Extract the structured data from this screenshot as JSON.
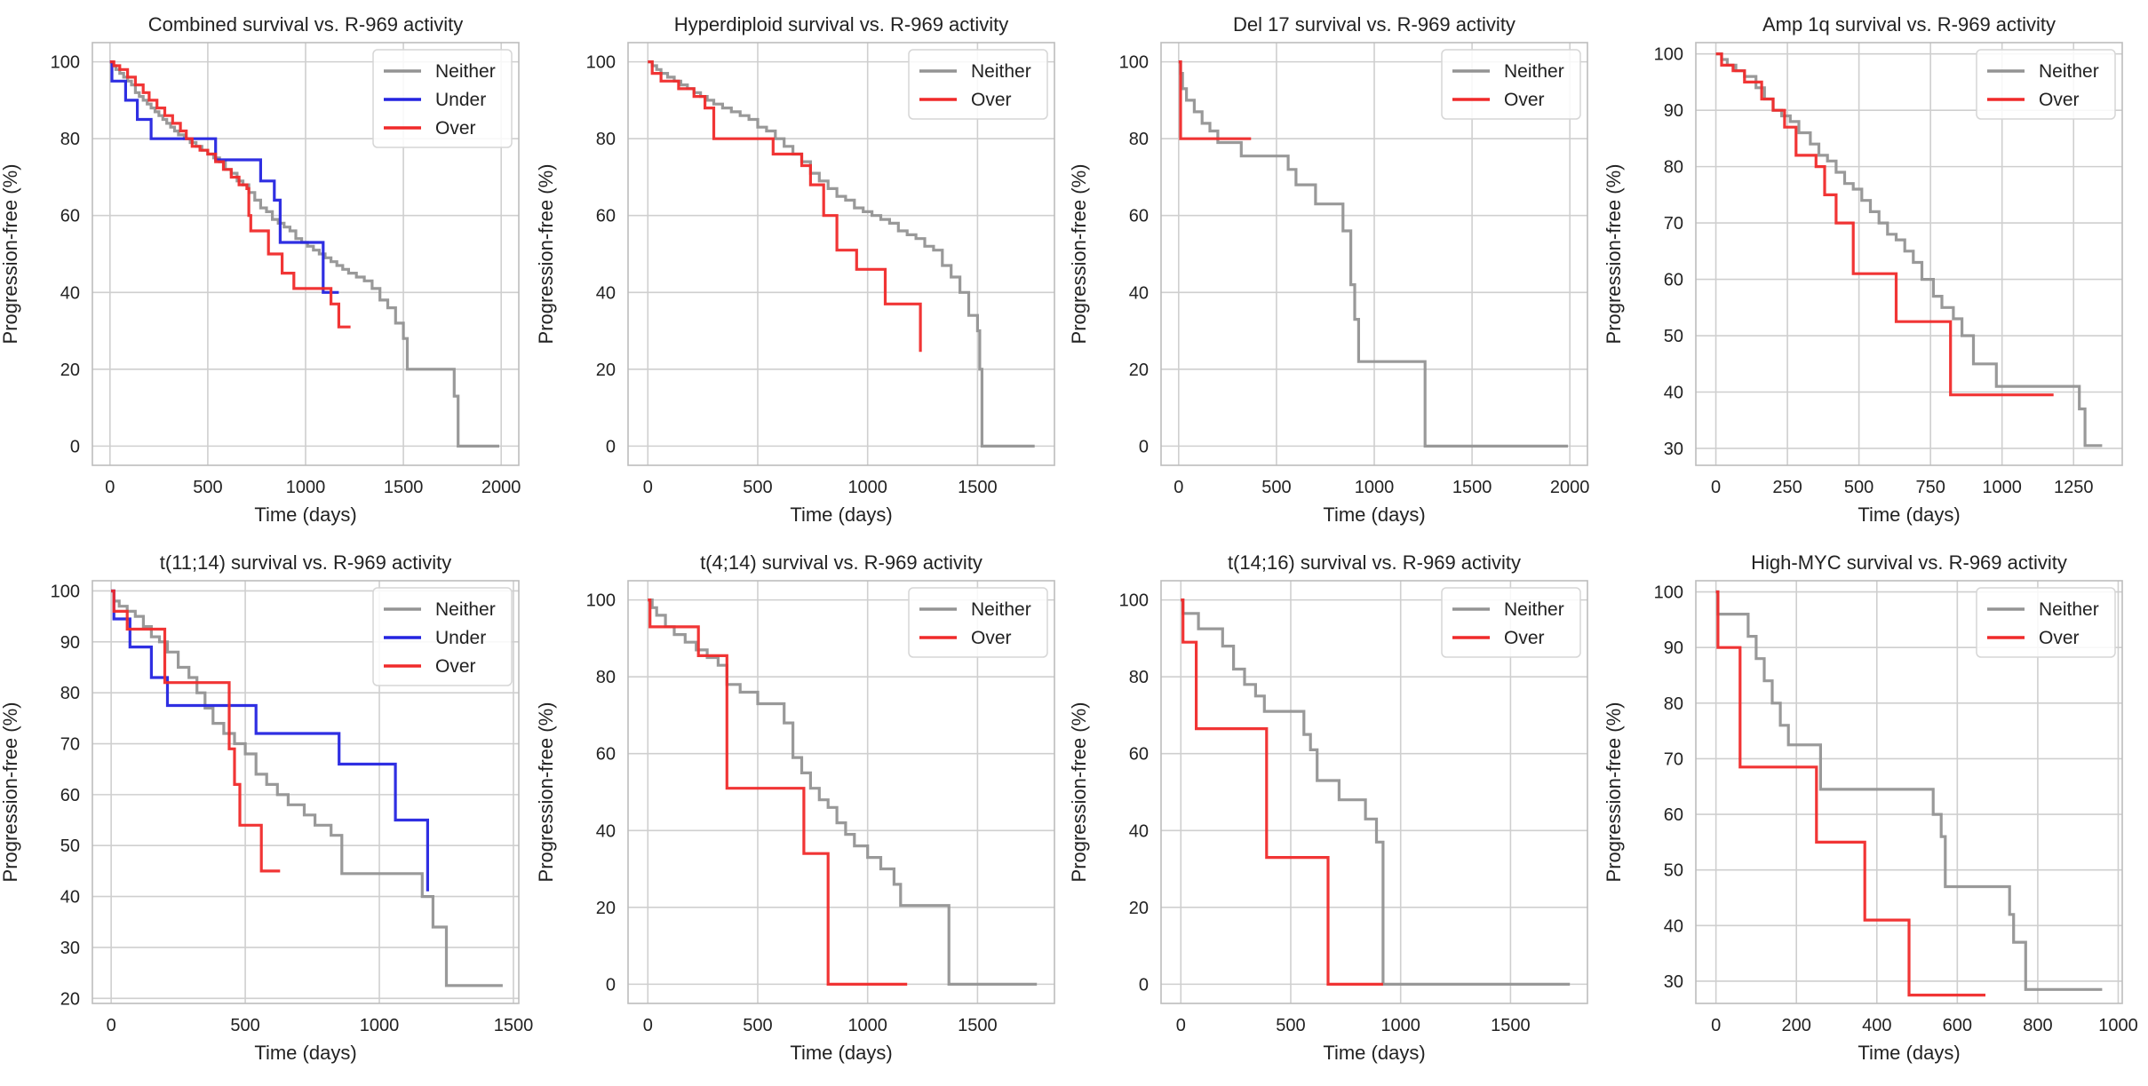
{
  "figure": {
    "background": "#ffffff",
    "grid_color": "#cfcfcf",
    "spine_color": "#bdbdbd"
  },
  "series_styles": {
    "Neither": {
      "color": "#939393"
    },
    "Under": {
      "color": "#2424e0"
    },
    "Over": {
      "color": "#f02a2a"
    }
  },
  "chart_data": [
    {
      "type": "line",
      "title": "Combined survival vs. R-969 activity",
      "xlabel": "Time (days)",
      "ylabel": "Progression-free (%)",
      "xlim": [
        -90,
        2090
      ],
      "ylim": [
        -5,
        105
      ],
      "xticks": [
        0,
        500,
        1000,
        1500,
        2000
      ],
      "yticks": [
        0,
        20,
        40,
        60,
        80,
        100
      ],
      "grid": true,
      "legend": "top-right",
      "series": [
        {
          "name": "Neither",
          "x": [
            0,
            15,
            30,
            50,
            70,
            90,
            110,
            130,
            150,
            170,
            190,
            210,
            230,
            250,
            270,
            290,
            310,
            330,
            350,
            380,
            410,
            440,
            470,
            500,
            530,
            560,
            590,
            620,
            650,
            680,
            710,
            740,
            770,
            800,
            830,
            860,
            890,
            920,
            950,
            980,
            1010,
            1040,
            1070,
            1100,
            1130,
            1160,
            1190,
            1220,
            1260,
            1300,
            1340,
            1380,
            1420,
            1460,
            1500,
            1520,
            1760,
            1780,
            1990
          ],
          "y": [
            100,
            99,
            98,
            97,
            96,
            95,
            94,
            92,
            91,
            90,
            89,
            88,
            87,
            86,
            85,
            84,
            83,
            82,
            81,
            80,
            79,
            78,
            77,
            76,
            75,
            74,
            72,
            71,
            69,
            68,
            66,
            64,
            62,
            61,
            59,
            58,
            57,
            56,
            54,
            53,
            52,
            51,
            50,
            49,
            48,
            47,
            46,
            45,
            44,
            43,
            41,
            38,
            36,
            32,
            28,
            20,
            13,
            0,
            0
          ]
        },
        {
          "name": "Under",
          "x": [
            0,
            10,
            80,
            140,
            210,
            510,
            540,
            720,
            770,
            840,
            870,
            1060,
            1090,
            1170
          ],
          "y": [
            100,
            95,
            90,
            85,
            80,
            80,
            74.5,
            74.5,
            69,
            64,
            53,
            53,
            40,
            40
          ]
        },
        {
          "name": "Over",
          "x": [
            0,
            20,
            50,
            90,
            130,
            170,
            200,
            240,
            280,
            320,
            360,
            390,
            420,
            460,
            500,
            540,
            580,
            620,
            660,
            700,
            710,
            720,
            780,
            810,
            840,
            880,
            940,
            1000,
            1040,
            1080,
            1130,
            1170,
            1230
          ],
          "y": [
            100,
            99,
            98,
            96,
            94,
            92,
            90,
            88,
            86,
            84,
            82,
            80,
            78,
            77,
            76,
            74,
            72,
            70,
            68,
            67,
            60,
            56,
            56,
            50,
            50,
            45,
            41,
            41,
            41,
            41,
            37,
            31,
            31
          ]
        }
      ]
    },
    {
      "type": "line",
      "title": "Hyperdiploid survival vs. R-969 activity",
      "xlabel": "Time (days)",
      "ylabel": "Progression-free (%)",
      "xlim": [
        -90,
        1850
      ],
      "ylim": [
        -5,
        105
      ],
      "xticks": [
        0,
        500,
        1000,
        1500
      ],
      "yticks": [
        0,
        20,
        40,
        60,
        80,
        100
      ],
      "grid": true,
      "legend": "top-right",
      "series": [
        {
          "name": "Neither",
          "x": [
            0,
            20,
            40,
            60,
            90,
            120,
            150,
            180,
            210,
            240,
            270,
            300,
            340,
            380,
            420,
            460,
            500,
            540,
            580,
            620,
            660,
            700,
            740,
            780,
            820,
            860,
            900,
            940,
            980,
            1020,
            1060,
            1100,
            1140,
            1180,
            1220,
            1260,
            1300,
            1340,
            1380,
            1420,
            1460,
            1500,
            1510,
            1520,
            1760
          ],
          "y": [
            100,
            99,
            98,
            97,
            96,
            95,
            94,
            93,
            92,
            91,
            90,
            89,
            88,
            87,
            86,
            85,
            83,
            82,
            80,
            78,
            76,
            74,
            71,
            69,
            67,
            65,
            64,
            62,
            61,
            60,
            59,
            58,
            56,
            55,
            54,
            52,
            51,
            47,
            44,
            40,
            34,
            30,
            20,
            0,
            0
          ]
        },
        {
          "name": "Over",
          "x": [
            0,
            20,
            60,
            140,
            210,
            260,
            300,
            540,
            570,
            660,
            700,
            730,
            740,
            800,
            860,
            900,
            950,
            1080,
            1240
          ],
          "y": [
            100,
            97,
            95,
            93,
            91,
            88,
            80,
            80,
            76,
            76,
            73,
            73,
            68,
            60,
            51,
            51,
            46,
            37,
            24.5
          ]
        }
      ]
    },
    {
      "type": "line",
      "title": "Del 17 survival vs. R-969 activity",
      "xlabel": "Time (days)",
      "ylabel": "Progression-free (%)",
      "xlim": [
        -90,
        2090
      ],
      "ylim": [
        -5,
        105
      ],
      "xticks": [
        0,
        500,
        1000,
        1500,
        2000
      ],
      "yticks": [
        0,
        20,
        40,
        60,
        80,
        100
      ],
      "grid": true,
      "legend": "top-right",
      "series": [
        {
          "name": "Neither",
          "x": [
            0,
            10,
            20,
            40,
            80,
            120,
            160,
            200,
            320,
            520,
            560,
            600,
            700,
            840,
            880,
            900,
            920,
            1250,
            1260,
            1990
          ],
          "y": [
            100,
            97,
            93,
            90,
            87,
            84,
            82,
            79,
            75.5,
            75.5,
            72,
            68,
            63,
            56,
            42,
            33,
            22,
            22,
            0,
            0
          ]
        },
        {
          "name": "Over",
          "x": [
            0,
            10,
            370
          ],
          "y": [
            100,
            80,
            80
          ]
        }
      ]
    },
    {
      "type": "line",
      "title": "Amp 1q survival vs. R-969 activity",
      "xlabel": "Time (days)",
      "ylabel": "Progression-free (%)",
      "xlim": [
        -70,
        1420
      ],
      "ylim": [
        27,
        102
      ],
      "xticks": [
        0,
        250,
        500,
        750,
        1000,
        1250
      ],
      "yticks": [
        30,
        40,
        50,
        60,
        70,
        80,
        90,
        100
      ],
      "grid": true,
      "legend": "top-right",
      "series": [
        {
          "name": "Neither",
          "x": [
            0,
            20,
            40,
            70,
            100,
            140,
            170,
            200,
            230,
            260,
            290,
            330,
            360,
            390,
            420,
            450,
            480,
            510,
            540,
            570,
            600,
            630,
            660,
            690,
            720,
            760,
            790,
            830,
            860,
            900,
            980,
            1240,
            1270,
            1290,
            1350
          ],
          "y": [
            100,
            99,
            98,
            97,
            96,
            94,
            92,
            90,
            89,
            88,
            86,
            84,
            82,
            81,
            79,
            77,
            76,
            74,
            72,
            70,
            68,
            67,
            65,
            63,
            60,
            57,
            55,
            53,
            50,
            45,
            41,
            41,
            37,
            30.5,
            30.5
          ]
        },
        {
          "name": "Over",
          "x": [
            0,
            20,
            60,
            100,
            160,
            200,
            240,
            280,
            330,
            350,
            380,
            420,
            480,
            630,
            820,
            1180
          ],
          "y": [
            100,
            98,
            97,
            95,
            92,
            90,
            87,
            82,
            82,
            80,
            75,
            70,
            61,
            52.5,
            39.5,
            39.5
          ]
        }
      ]
    },
    {
      "type": "line",
      "title": "t(11;14) survival vs. R-969 activity",
      "xlabel": "Time (days)",
      "ylabel": "Progression-free (%)",
      "xlim": [
        -70,
        1520
      ],
      "ylim": [
        19,
        102
      ],
      "xticks": [
        0,
        500,
        1000,
        1500
      ],
      "yticks": [
        20,
        30,
        40,
        50,
        60,
        70,
        80,
        90,
        100
      ],
      "grid": true,
      "legend": "top-right",
      "series": [
        {
          "name": "Neither",
          "x": [
            0,
            10,
            30,
            60,
            90,
            120,
            150,
            180,
            210,
            250,
            290,
            320,
            350,
            380,
            420,
            460,
            500,
            540,
            580,
            620,
            660,
            720,
            760,
            820,
            860,
            1020,
            1160,
            1200,
            1250,
            1460
          ],
          "y": [
            100,
            98,
            97,
            96,
            95,
            93,
            91,
            90,
            88,
            85,
            83,
            80,
            77,
            74,
            72,
            70,
            68,
            64,
            62,
            60,
            58,
            56,
            54,
            52,
            44.5,
            44.5,
            40,
            34,
            22.5,
            22.5
          ]
        },
        {
          "name": "Under",
          "x": [
            0,
            10,
            70,
            150,
            210,
            520,
            540,
            850,
            1060,
            1180
          ],
          "y": [
            100,
            94.5,
            89,
            83,
            77.5,
            77.5,
            72,
            66,
            55,
            41
          ]
        },
        {
          "name": "Over",
          "x": [
            0,
            10,
            60,
            140,
            200,
            400,
            440,
            460,
            480,
            520,
            560,
            630
          ],
          "y": [
            100,
            96,
            92.5,
            92.5,
            82,
            82,
            69,
            62,
            54,
            54,
            45,
            45
          ]
        }
      ]
    },
    {
      "type": "line",
      "title": "t(4;14) survival vs. R-969 activity",
      "xlabel": "Time (days)",
      "ylabel": "Progression-free (%)",
      "xlim": [
        -90,
        1850
      ],
      "ylim": [
        -5,
        105
      ],
      "xticks": [
        0,
        500,
        1000,
        1500
      ],
      "yticks": [
        0,
        20,
        40,
        60,
        80,
        100
      ],
      "grid": true,
      "legend": "top-right",
      "series": [
        {
          "name": "Neither",
          "x": [
            0,
            20,
            40,
            80,
            120,
            170,
            220,
            270,
            320,
            360,
            420,
            500,
            560,
            620,
            660,
            700,
            740,
            780,
            820,
            860,
            900,
            940,
            1000,
            1060,
            1120,
            1150,
            1360,
            1370,
            1770
          ],
          "y": [
            100,
            98,
            96,
            93,
            91,
            89,
            87,
            85,
            83,
            78,
            76,
            73,
            73,
            68,
            59,
            55,
            51,
            48,
            46,
            42,
            39,
            36,
            33,
            30,
            26,
            20.5,
            20.5,
            0,
            0
          ]
        },
        {
          "name": "Over",
          "x": [
            0,
            10,
            230,
            360,
            710,
            820,
            1180
          ],
          "y": [
            100,
            93,
            85.5,
            51,
            34,
            0,
            0
          ]
        }
      ]
    },
    {
      "type": "line",
      "title": "t(14;16) survival vs. R-969 activity",
      "xlabel": "Time (days)",
      "ylabel": "Progression-free (%)",
      "xlim": [
        -90,
        1850
      ],
      "ylim": [
        -5,
        105
      ],
      "xticks": [
        0,
        500,
        1000,
        1500
      ],
      "yticks": [
        0,
        20,
        40,
        60,
        80,
        100
      ],
      "grid": true,
      "legend": "top-right",
      "series": [
        {
          "name": "Neither",
          "x": [
            0,
            10,
            80,
            190,
            240,
            290,
            340,
            380,
            540,
            560,
            590,
            620,
            720,
            840,
            890,
            920,
            1770
          ],
          "y": [
            100,
            96.5,
            92.5,
            88,
            82,
            78,
            75,
            71,
            71,
            65,
            61,
            53,
            48,
            43,
            37,
            0,
            0
          ]
        },
        {
          "name": "Over",
          "x": [
            0,
            10,
            70,
            390,
            670,
            920
          ],
          "y": [
            100,
            89,
            66.5,
            33,
            0,
            0
          ]
        }
      ]
    },
    {
      "type": "line",
      "title": "High-MYC survival vs. R-969 activity",
      "xlabel": "Time (days)",
      "ylabel": "Progression-free (%)",
      "xlim": [
        -50,
        1010
      ],
      "ylim": [
        26,
        102
      ],
      "xticks": [
        0,
        200,
        400,
        600,
        800,
        1000
      ],
      "yticks": [
        30,
        40,
        50,
        60,
        70,
        80,
        90,
        100
      ],
      "grid": true,
      "legend": "top-right",
      "series": [
        {
          "name": "Neither",
          "x": [
            0,
            5,
            80,
            100,
            120,
            140,
            160,
            180,
            250,
            260,
            520,
            540,
            560,
            570,
            710,
            730,
            740,
            770,
            960
          ],
          "y": [
            100,
            96,
            92,
            88,
            84,
            80,
            76,
            72.5,
            72.5,
            64.5,
            64.5,
            60,
            56,
            47,
            47,
            42,
            37,
            28.5,
            28.5
          ]
        },
        {
          "name": "Over",
          "x": [
            0,
            5,
            60,
            250,
            370,
            480,
            670
          ],
          "y": [
            100,
            90,
            68.5,
            55,
            41,
            27.5,
            27.5
          ]
        }
      ]
    }
  ]
}
